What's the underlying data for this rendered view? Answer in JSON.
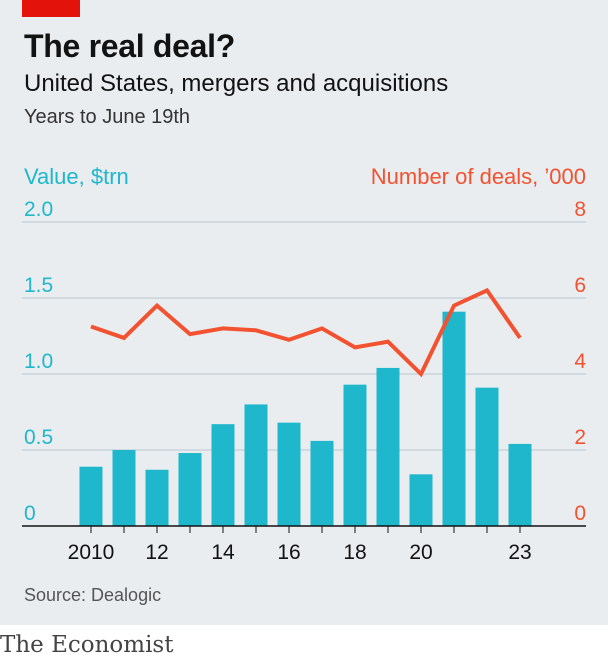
{
  "header": {
    "title": "The real deal?",
    "subtitle": "United States, mergers and acquisitions",
    "subsubtitle": "Years to June 19th"
  },
  "footer": {
    "source": "Source: Dealogic",
    "brand": "The Economist"
  },
  "colors": {
    "bars": "#1fb7cc",
    "line": "#f2522f",
    "background": "#e9edf0",
    "accent_tag": "#e3120b"
  },
  "chart_data": {
    "type": "bar",
    "years": [
      2010,
      2011,
      2012,
      2013,
      2014,
      2015,
      2016,
      2017,
      2018,
      2019,
      2020,
      2021,
      2022,
      2023
    ],
    "x_tick_labels": [
      {
        "year": 2010,
        "label": "2010"
      },
      {
        "year": 2012,
        "label": "12"
      },
      {
        "year": 2014,
        "label": "14"
      },
      {
        "year": 2016,
        "label": "16"
      },
      {
        "year": 2018,
        "label": "18"
      },
      {
        "year": 2020,
        "label": "20"
      },
      {
        "year": 2023,
        "label": "23"
      }
    ],
    "left_axis": {
      "label": "Value, $trn",
      "range": [
        0,
        2.0
      ],
      "ticks": [
        0,
        0.5,
        1.0,
        1.5,
        2.0
      ],
      "tick_labels": [
        "0",
        "0.5",
        "1.0",
        "1.5",
        "2.0"
      ]
    },
    "right_axis": {
      "label": "Number of deals, ’000",
      "range": [
        0,
        8
      ],
      "ticks": [
        0,
        2,
        4,
        6,
        8
      ],
      "tick_labels": [
        "0",
        "2",
        "4",
        "6",
        "8"
      ]
    },
    "series": [
      {
        "type": "bar",
        "axis": "left",
        "values": [
          0.39,
          0.5,
          0.37,
          0.48,
          0.67,
          0.8,
          0.68,
          0.56,
          0.93,
          1.04,
          0.34,
          1.41,
          0.91,
          0.54
        ]
      },
      {
        "type": "line",
        "axis": "right",
        "values": [
          5.25,
          4.95,
          5.8,
          5.05,
          5.2,
          5.15,
          4.9,
          5.2,
          4.7,
          4.85,
          4.0,
          5.8,
          6.2,
          4.95
        ]
      }
    ],
    "grid": true
  }
}
